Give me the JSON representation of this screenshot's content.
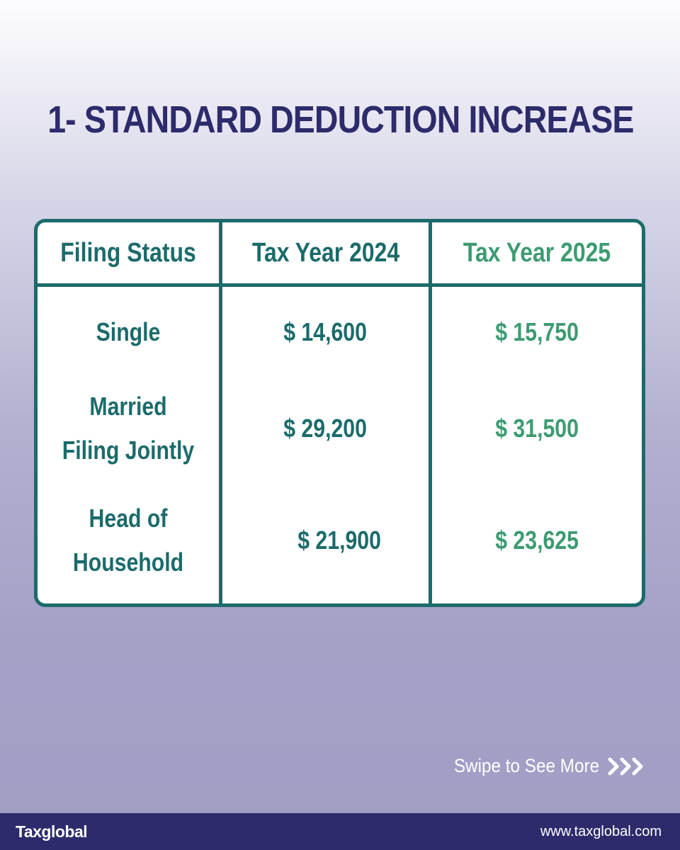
{
  "title": "1- STANDARD DEDUCTION INCREASE",
  "table": {
    "headers": [
      "Filing Status",
      "Tax Year 2024",
      "Tax Year 2025"
    ],
    "rows": [
      {
        "status_lines": [
          "Single"
        ],
        "y2024": "$ 14,600",
        "y2025": "$ 15,750"
      },
      {
        "status_lines": [
          "Married",
          "Filing Jointly"
        ],
        "y2024": "$ 29,200",
        "y2025": "$ 31,500"
      },
      {
        "status_lines": [
          "Head of",
          "Household"
        ],
        "y2024": "$ 21,900",
        "y2025": "$ 23,625"
      }
    ]
  },
  "swipe": {
    "label": "Swipe to See More",
    "icon": "triple-chevron-right-icon"
  },
  "footer": {
    "logo_text": "Taxglobal",
    "website": "www.taxglobal.com"
  },
  "colors": {
    "title": "#2d2b6b",
    "teal": "#1c6b6b",
    "green": "#3d9b72",
    "footer_bar": "#2d2b6b"
  }
}
